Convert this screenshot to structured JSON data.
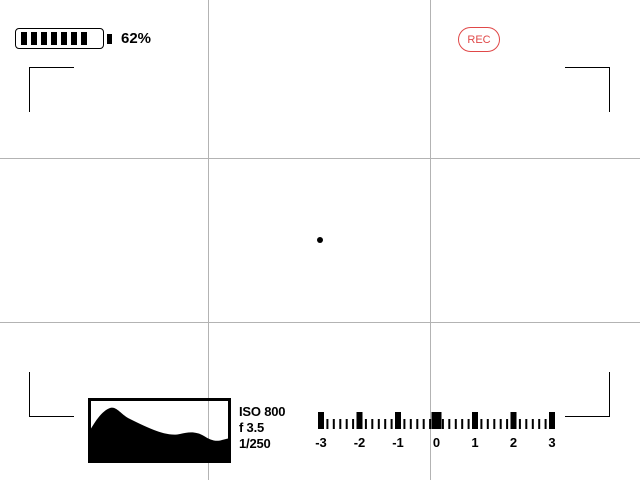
{
  "battery": {
    "percent_label": "62%",
    "level": 0.62,
    "cells_filled": 7
  },
  "record": {
    "label": "REC",
    "color": "#e04848"
  },
  "exposure": {
    "iso": "ISO 800",
    "aperture": "f 3.5",
    "shutter": "1/250"
  },
  "ev_meter": {
    "labels": [
      "-3",
      "-2",
      "-1",
      "0",
      "1",
      "2",
      "3"
    ],
    "current_value": 0
  },
  "histogram": {
    "shape": "luminance-histogram"
  }
}
